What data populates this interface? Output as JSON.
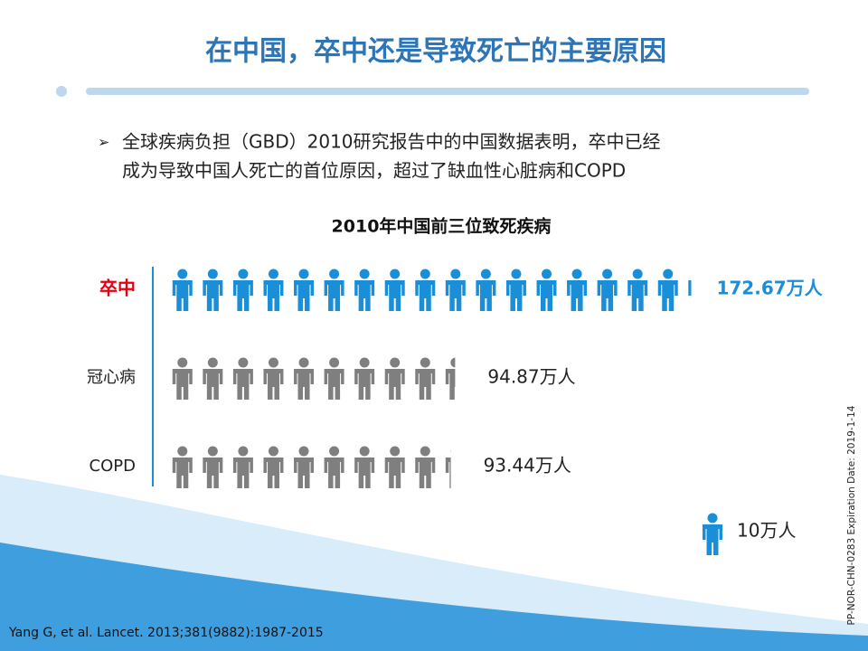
{
  "slide": {
    "title": "在中国，卒中还是导致死亡的主要原因",
    "bullet_lines": [
      "全球疾病负担（GBD）2010研究报告中的中国数据表明，卒中已经",
      "成为导致中国人死亡的首位原因，超过了缺血性心脏病和COPD"
    ],
    "reference": "Yang G, et al. Lancet. 2013;381(9882):1987-2015",
    "code": "PP-NOR-CHN-0283 Expiration Date: 2019-1-14"
  },
  "chart_data": {
    "type": "pictograph",
    "title": "2010年中国前三位致死疾病",
    "categories": [
      "卒中",
      "冠心病",
      "COPD"
    ],
    "values": [
      172.67,
      94.87,
      93.44
    ],
    "value_labels": [
      "172.67万人",
      "94.87万人",
      "93.44万人"
    ],
    "colors": [
      "#1a8fd8",
      "#7f7f7f",
      "#7f7f7f"
    ],
    "label_colors": [
      "#e60012",
      "#222222",
      "#222222"
    ],
    "icon_value": 10,
    "icon_label": "10万人",
    "icon_color": "#1a8fd8"
  }
}
